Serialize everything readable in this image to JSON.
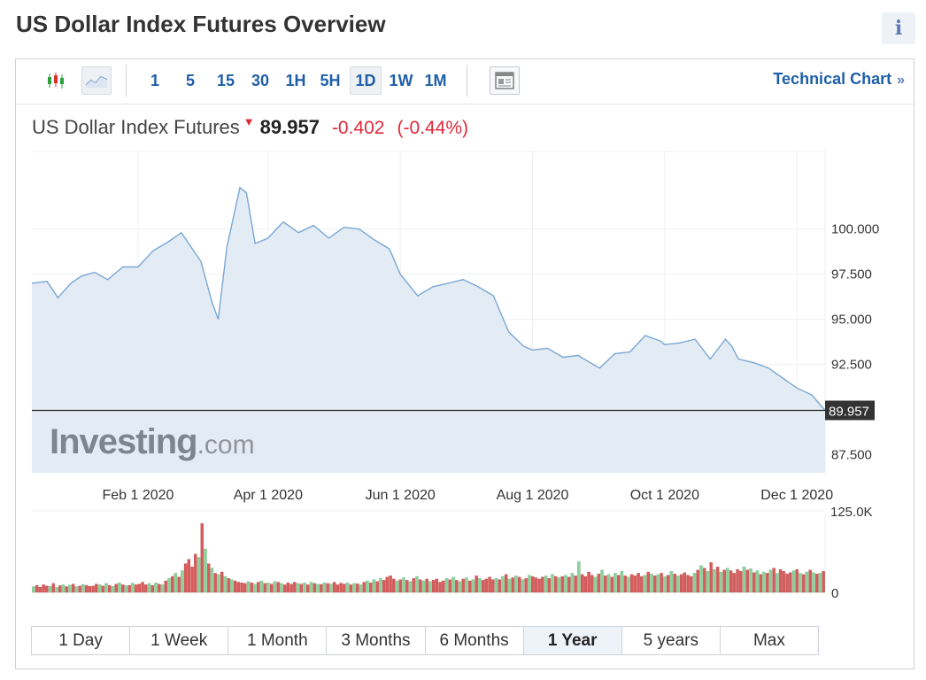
{
  "page": {
    "title": "US Dollar Index Futures Overview",
    "info_icon": "info-icon"
  },
  "toolbar": {
    "chart_type_icons": [
      "candlestick-icon",
      "line-chart-icon"
    ],
    "timeframes": [
      "1",
      "5",
      "15",
      "30",
      "1H",
      "5H",
      "1D",
      "1W",
      "1M"
    ],
    "active_timeframe": "1D",
    "news_icon": "news-overlay-icon",
    "technical_chart_label": "Technical Chart",
    "technical_chart_arrow": "»"
  },
  "quote": {
    "name": "US Dollar Index Futures",
    "direction_icon": "down-arrow-icon",
    "last": "89.957",
    "change": "-0.402",
    "change_pct": "(-0.44%)"
  },
  "watermark": {
    "brand": "Investing",
    "suffix": ".com"
  },
  "range_selector": {
    "options": [
      "1 Day",
      "1 Week",
      "1 Month",
      "3 Months",
      "6 Months",
      "1 Year",
      "5 years",
      "Max"
    ],
    "active": "1 Year"
  },
  "colors": {
    "line": "#7aa7d4",
    "area": "#e3ecf5",
    "up_volume": "#8fd19e",
    "down_volume": "#d65c5c",
    "negative": "#e0283a",
    "link": "#1f5fa8"
  },
  "chart_data": {
    "type": "area",
    "title": "",
    "x_tick_labels": [
      "Feb 1 2020",
      "Apr 1 2020",
      "Jun 1 2020",
      "Aug 1 2020",
      "Oct 1 2020",
      "Dec 1 2020"
    ],
    "y_tick_labels": [
      "100.000",
      "97.500",
      "95.000",
      "92.500",
      "87.500"
    ],
    "ylim": [
      86.5,
      104.3
    ],
    "last_price_label": "89.957",
    "last_price": 89.957,
    "x": [
      "2019-12-14",
      "2019-12-21",
      "2019-12-26",
      "2020-01-01",
      "2020-01-06",
      "2020-01-12",
      "2020-01-18",
      "2020-01-25",
      "2020-02-01",
      "2020-02-08",
      "2020-02-15",
      "2020-02-21",
      "2020-03-01",
      "2020-03-06",
      "2020-03-09",
      "2020-03-13",
      "2020-03-19",
      "2020-03-22",
      "2020-03-26",
      "2020-04-01",
      "2020-04-08",
      "2020-04-15",
      "2020-04-22",
      "2020-04-29",
      "2020-05-06",
      "2020-05-13",
      "2020-05-20",
      "2020-05-27",
      "2020-06-01",
      "2020-06-09",
      "2020-06-16",
      "2020-06-23",
      "2020-06-30",
      "2020-07-07",
      "2020-07-14",
      "2020-07-21",
      "2020-07-28",
      "2020-08-01",
      "2020-08-08",
      "2020-08-15",
      "2020-08-22",
      "2020-08-29",
      "2020-09-01",
      "2020-09-08",
      "2020-09-15",
      "2020-09-22",
      "2020-09-29",
      "2020-10-01",
      "2020-10-08",
      "2020-10-15",
      "2020-10-22",
      "2020-10-29",
      "2020-11-01",
      "2020-11-04",
      "2020-11-11",
      "2020-11-18",
      "2020-11-25",
      "2020-12-01",
      "2020-12-08",
      "2020-12-14"
    ],
    "series": [
      {
        "values": [
          97.0,
          97.1,
          96.2,
          97.0,
          97.4,
          97.6,
          97.2,
          97.9,
          97.9,
          98.8,
          99.3,
          99.8,
          98.2,
          96.0,
          95.0,
          99.0,
          102.3,
          102.0,
          99.2,
          99.5,
          100.4,
          99.8,
          100.2,
          99.5,
          100.1,
          100.0,
          99.4,
          98.9,
          97.5,
          96.3,
          96.8,
          97.0,
          97.2,
          96.8,
          96.3,
          94.3,
          93.5,
          93.3,
          93.4,
          92.9,
          93.0,
          92.5,
          92.3,
          93.1,
          93.2,
          94.1,
          93.8,
          93.6,
          93.7,
          93.9,
          92.8,
          93.9,
          93.5,
          92.8,
          92.6,
          92.3,
          91.7,
          91.2,
          90.8,
          89.957
        ]
      }
    ],
    "volume": {
      "ymax_label": "125.0K",
      "ymin_label": "0",
      "ymax": 125000,
      "bars": [
        {
          "x": "2020-01",
          "v": [
            9000,
            11000,
            8000,
            12000,
            10000,
            9500,
            14000,
            8000,
            10500,
            12000,
            9000,
            11500,
            13000,
            9000,
            10000,
            12500,
            11000,
            9500,
            10000,
            13000
          ]
        },
        {
          "x": "2020-02",
          "v": [
            12000,
            10000,
            14000,
            11000,
            9500,
            13000,
            15000,
            12000,
            10500,
            11000,
            14500,
            12000,
            13000,
            16000,
            12000,
            14000,
            11000,
            15000,
            13000,
            12000
          ]
        },
        {
          "x": "2020-03",
          "v": [
            18000,
            22000,
            25000,
            30000,
            24000,
            34000,
            45000,
            52000,
            40000,
            60000,
            55000,
            108000,
            68000,
            45000,
            38000,
            30000,
            28000,
            32000,
            25000,
            22000
          ]
        },
        {
          "x": "2020-04",
          "v": [
            20000,
            18000,
            16000,
            15000,
            14000,
            17000,
            15000,
            13000,
            16000,
            18000,
            14000,
            15000,
            13000,
            17000,
            16000,
            14000,
            12000,
            15000,
            13000,
            16000
          ]
        },
        {
          "x": "2020-05",
          "v": [
            14000,
            13000,
            15000,
            12000,
            16000,
            14000,
            13000,
            12500,
            15000,
            14000,
            13000,
            16000,
            12000,
            14500,
            13000,
            15000,
            12000,
            14000,
            13500,
            12000
          ]
        },
        {
          "x": "2020-06",
          "v": [
            16000,
            18000,
            15000,
            20000,
            17000,
            22000,
            19000,
            24000,
            26000,
            21000,
            18000,
            20000,
            23000,
            19000,
            17000,
            22000,
            25000,
            20000,
            18000,
            21000
          ]
        },
        {
          "x": "2020-07",
          "v": [
            17000,
            19000,
            21000,
            16000,
            18000,
            22000,
            20000,
            24000,
            19000,
            17000,
            21000,
            23000,
            18000,
            20000,
            26000,
            22000,
            19000,
            21000,
            24000,
            20000
          ]
        },
        {
          "x": "2020-08",
          "v": [
            22000,
            20000,
            25000,
            28000,
            21000,
            23000,
            26000,
            24000,
            20000,
            22000,
            27000,
            25000,
            23000,
            21000,
            24000,
            26000,
            22000,
            28000,
            25000,
            23000
          ]
        },
        {
          "x": "2020-09",
          "v": [
            25000,
            27000,
            24000,
            30000,
            26000,
            48000,
            28000,
            25000,
            32000,
            27000,
            24000,
            29000,
            35000,
            26000,
            28000,
            24000,
            30000,
            27000,
            33000,
            26000
          ]
        },
        {
          "x": "2020-10",
          "v": [
            24000,
            28000,
            26000,
            30000,
            25000,
            27000,
            32000,
            29000,
            26000,
            28000,
            30000,
            25000,
            27000,
            33000,
            29000,
            26000,
            28000,
            31000,
            27000,
            25000
          ]
        },
        {
          "x": "2020-11",
          "v": [
            30000,
            35000,
            42000,
            38000,
            33000,
            47000,
            36000,
            40000,
            32000,
            35000,
            38000,
            34000,
            30000,
            36000,
            33000,
            40000,
            35000,
            37000,
            31000,
            34000
          ]
        },
        {
          "x": "2020-12",
          "v": [
            28000,
            32000,
            30000,
            35000,
            38000,
            30000,
            36000,
            33000,
            29000,
            31000,
            34000,
            36000,
            30000,
            28000,
            32000,
            35000,
            31000,
            29000,
            30000,
            33000
          ]
        }
      ]
    }
  }
}
